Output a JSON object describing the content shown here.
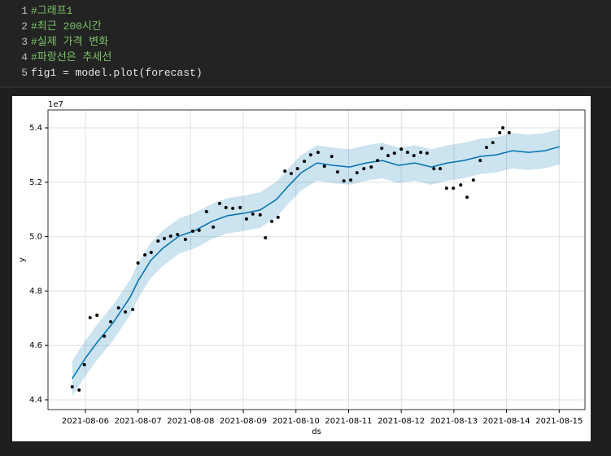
{
  "cell": {
    "lines": [
      {
        "number": 1,
        "text": "#그래프1"
      },
      {
        "number": 2,
        "text": "#최근 200시간"
      },
      {
        "number": 3,
        "text": "#실제 가격 변화"
      },
      {
        "number": 4,
        "text": "#파랑선은 추세선"
      },
      {
        "number": 5,
        "text": "fig1 = model.plot(forecast)"
      }
    ]
  },
  "chart_data": {
    "type": "line",
    "xlabel": "ds",
    "ylabel": "y",
    "offset_label": "1e7",
    "grid": true,
    "xlim": [
      18844.29,
      18854.49
    ],
    "ylim": [
      4.364,
      5.466
    ],
    "xticks": [
      {
        "value": 18845,
        "label": "2021-08-06"
      },
      {
        "value": 18846,
        "label": "2021-08-07"
      },
      {
        "value": 18847,
        "label": "2021-08-08"
      },
      {
        "value": 18848,
        "label": "2021-08-09"
      },
      {
        "value": 18849,
        "label": "2021-08-10"
      },
      {
        "value": 18850,
        "label": "2021-08-11"
      },
      {
        "value": 18851,
        "label": "2021-08-12"
      },
      {
        "value": 18852,
        "label": "2021-08-13"
      },
      {
        "value": 18853,
        "label": "2021-08-14"
      },
      {
        "value": 18854,
        "label": "2021-08-15"
      }
    ],
    "yticks": [
      4.4,
      4.6,
      4.8,
      {
        "value": 5,
        "label": "5.0"
      },
      5.2,
      5.4
    ],
    "forecast": {
      "color": "#0072B2",
      "x": [
        18844.75,
        18845.0,
        18845.23,
        18845.54,
        18845.85,
        18846.0,
        18846.24,
        18846.47,
        18846.78,
        18847.09,
        18847.4,
        18847.7,
        18848.01,
        18848.32,
        18848.63,
        18848.86,
        18849.1,
        18849.4,
        18849.71,
        18850.02,
        18850.33,
        18850.64,
        18850.95,
        18851.26,
        18851.57,
        18851.88,
        18852.19,
        18852.5,
        18852.81,
        18853.11,
        18853.42,
        18853.73,
        18854.01
      ],
      "values": [
        4.478,
        4.553,
        4.613,
        4.687,
        4.777,
        4.837,
        4.912,
        4.957,
        5.002,
        5.023,
        5.056,
        5.077,
        5.086,
        5.098,
        5.137,
        5.187,
        5.235,
        5.271,
        5.262,
        5.256,
        5.271,
        5.28,
        5.262,
        5.271,
        5.256,
        5.271,
        5.28,
        5.295,
        5.301,
        5.316,
        5.31,
        5.316,
        5.331
      ],
      "lower": [
        4.413,
        4.488,
        4.548,
        4.622,
        4.712,
        4.772,
        4.847,
        4.892,
        4.937,
        4.958,
        4.991,
        5.012,
        5.021,
        5.033,
        5.072,
        5.122,
        5.17,
        5.206,
        5.197,
        5.191,
        5.206,
        5.215,
        5.197,
        5.206,
        5.191,
        5.206,
        5.215,
        5.23,
        5.236,
        5.251,
        5.245,
        5.251,
        5.266
      ],
      "upper": [
        4.543,
        4.618,
        4.678,
        4.752,
        4.842,
        4.902,
        4.977,
        5.022,
        5.067,
        5.088,
        5.121,
        5.142,
        5.151,
        5.163,
        5.202,
        5.252,
        5.3,
        5.336,
        5.327,
        5.321,
        5.336,
        5.345,
        5.327,
        5.336,
        5.321,
        5.336,
        5.345,
        5.36,
        5.366,
        5.381,
        5.375,
        5.381,
        5.396
      ]
    },
    "observed": {
      "color": "#000000",
      "x": [
        18844.75,
        18844.88,
        18844.98,
        18845.09,
        18845.22,
        18845.36,
        18845.48,
        18845.63,
        18845.76,
        18845.9,
        18846.0,
        18846.13,
        18846.25,
        18846.38,
        18846.5,
        18846.62,
        18846.75,
        18846.9,
        18847.04,
        18847.16,
        18847.3,
        18847.43,
        18847.55,
        18847.67,
        18847.8,
        18847.94,
        18848.06,
        18848.18,
        18848.32,
        18848.42,
        18848.54,
        18848.66,
        18848.79,
        18848.91,
        18849.03,
        18849.16,
        18849.28,
        18849.42,
        18849.54,
        18849.68,
        18849.79,
        18849.91,
        18850.04,
        18850.16,
        18850.29,
        18850.43,
        18850.55,
        18850.63,
        18850.75,
        18850.87,
        18851.0,
        18851.12,
        18851.24,
        18851.37,
        18851.49,
        18851.62,
        18851.74,
        18851.86,
        18851.99,
        18852.13,
        18852.25,
        18852.37,
        18852.5,
        18852.62,
        18852.74,
        18852.87,
        18852.93,
        18853.05
      ],
      "values": [
        4.448,
        4.436,
        4.529,
        4.702,
        4.711,
        4.634,
        4.687,
        4.738,
        4.723,
        4.732,
        4.903,
        4.933,
        4.942,
        4.984,
        4.993,
        5.002,
        5.008,
        4.99,
        5.02,
        5.023,
        5.092,
        5.035,
        5.122,
        5.107,
        5.104,
        5.107,
        5.065,
        5.083,
        5.08,
        4.996,
        5.056,
        5.071,
        5.241,
        5.232,
        5.25,
        5.277,
        5.301,
        5.31,
        5.259,
        5.295,
        5.238,
        5.205,
        5.208,
        5.235,
        5.25,
        5.256,
        5.28,
        5.325,
        5.298,
        5.307,
        5.322,
        5.31,
        5.298,
        5.31,
        5.307,
        5.25,
        5.25,
        5.178,
        5.178,
        5.19,
        5.145,
        5.208,
        5.28,
        5.328,
        5.346,
        5.382,
        5.4,
        5.382
      ]
    }
  }
}
